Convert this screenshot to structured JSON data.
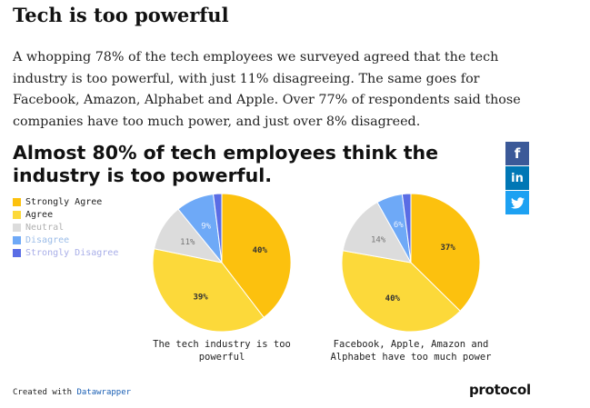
{
  "article": {
    "heading": "Tech is too powerful",
    "intro": "A whopping 78% of the tech employees we surveyed agreed that the tech industry is too powerful, with just 11% disagreeing. The same goes for Facebook, Amazon, Alphabet and Apple. Over 77% of respondents said those companies have too much power, and just over 8% disagreed."
  },
  "share": {
    "facebook_icon": "f",
    "linkedin_icon": "in",
    "twitter_icon": "twitter-bird"
  },
  "chart_title": "Almost 80% of tech employees think the industry is too powerful.",
  "legend": [
    {
      "label": "Strongly Agree",
      "color": "#fcc10e",
      "text_color": "#222222"
    },
    {
      "label": "Agree",
      "color": "#fcd93a",
      "text_color": "#222222"
    },
    {
      "label": "Neutral",
      "color": "#dcdcdc",
      "text_color": "#b0b0b0"
    },
    {
      "label": "Disagree",
      "color": "#6ea9f7",
      "text_color": "#9bbce8"
    },
    {
      "label": "Strongly Disagree",
      "color": "#5a6de5",
      "text_color": "#a8aee8"
    }
  ],
  "chart_data": [
    {
      "type": "pie",
      "caption": "The tech industry is too powerful",
      "slices": [
        {
          "name": "Strongly Agree",
          "value": 40,
          "label": "40%"
        },
        {
          "name": "Agree",
          "value": 39,
          "label": "39%"
        },
        {
          "name": "Neutral",
          "value": 11,
          "label": "11%"
        },
        {
          "name": "Disagree",
          "value": 9,
          "label": "9%"
        },
        {
          "name": "Strongly Disagree",
          "value": 2,
          "label": ""
        }
      ]
    },
    {
      "type": "pie",
      "caption": "Facebook, Apple, Amazon and Alphabet have too much power",
      "slices": [
        {
          "name": "Strongly Agree",
          "value": 37,
          "label": "37%"
        },
        {
          "name": "Agree",
          "value": 40,
          "label": "40%"
        },
        {
          "name": "Neutral",
          "value": 14,
          "label": "14%"
        },
        {
          "name": "Disagree",
          "value": 6,
          "label": "6%"
        },
        {
          "name": "Strongly Disagree",
          "value": 2,
          "label": ""
        }
      ]
    }
  ],
  "footer": {
    "created_with": "Created with",
    "tool": "Datawrapper",
    "brand": "protocol"
  }
}
